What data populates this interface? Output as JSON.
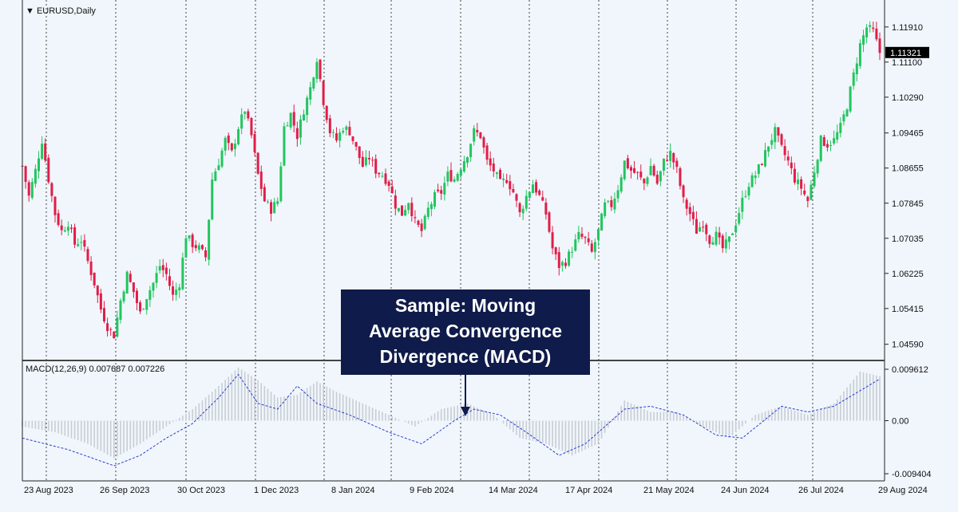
{
  "header": {
    "symbol": "EURUSD,Daily",
    "indicator": "MACD(12,26,9) 0.007687 0.007226"
  },
  "callout": {
    "line1": "Sample: Moving",
    "line2": "Average Convergence",
    "line3": "Divergence (MACD)"
  },
  "colors": {
    "background": "#f0f6fc",
    "bull": "#22c55e",
    "bear": "#e11d48",
    "macd_hist": "#c8cdd3",
    "signal": "#2b3bd0",
    "callout_bg": "#0f1b4a",
    "current_price_bg": "#000000"
  },
  "chart_data": [
    {
      "type": "candlestick",
      "title": "EURUSD,Daily",
      "y_ticks": [
        "1.11910",
        "1.11100",
        "1.10290",
        "1.09465",
        "1.08655",
        "1.07845",
        "1.07035",
        "1.06225",
        "1.05415",
        "1.04590"
      ],
      "ylim": [
        1.044,
        1.1198
      ],
      "current_price": "1.11321",
      "x_ticks": [
        "23 Aug 2023",
        "26 Sep 2023",
        "30 Oct 2023",
        "1 Dec 2023",
        "8 Jan 2024",
        "9 Feb 2024",
        "14 Mar 2024",
        "17 Apr 2024",
        "21 May 2024",
        "24 Jun 2024",
        "26 Jul 2024",
        "29 Aug 2024"
      ],
      "close_path": [
        [
          0,
          1.087
        ],
        [
          2,
          1.08
        ],
        [
          4,
          1.086
        ],
        [
          6,
          1.093
        ],
        [
          8,
          1.084
        ],
        [
          10,
          1.076
        ],
        [
          12,
          1.072
        ],
        [
          14,
          1.074
        ],
        [
          16,
          1.069
        ],
        [
          18,
          1.07
        ],
        [
          20,
          1.065
        ],
        [
          22,
          1.06
        ],
        [
          24,
          1.054
        ],
        [
          26,
          1.05
        ],
        [
          28,
          1.048
        ],
        [
          30,
          1.056
        ],
        [
          32,
          1.062
        ],
        [
          34,
          1.058
        ],
        [
          36,
          1.053
        ],
        [
          38,
          1.057
        ],
        [
          40,
          1.06
        ],
        [
          42,
          1.064
        ],
        [
          44,
          1.062
        ],
        [
          46,
          1.057
        ],
        [
          48,
          1.06
        ],
        [
          50,
          1.071
        ],
        [
          52,
          1.069
        ],
        [
          54,
          1.068
        ],
        [
          56,
          1.066
        ],
        [
          58,
          1.084
        ],
        [
          60,
          1.088
        ],
        [
          62,
          1.093
        ],
        [
          64,
          1.09
        ],
        [
          66,
          1.096
        ],
        [
          68,
          1.1
        ],
        [
          70,
          1.094
        ],
        [
          72,
          1.085
        ],
        [
          74,
          1.079
        ],
        [
          76,
          1.077
        ],
        [
          78,
          1.079
        ],
        [
          80,
          1.096
        ],
        [
          82,
          1.099
        ],
        [
          84,
          1.094
        ],
        [
          86,
          1.1
        ],
        [
          88,
          1.105
        ],
        [
          90,
          1.112
        ],
        [
          92,
          1.102
        ],
        [
          94,
          1.095
        ],
        [
          96,
          1.093
        ],
        [
          98,
          1.096
        ],
        [
          100,
          1.095
        ],
        [
          102,
          1.091
        ],
        [
          104,
          1.087
        ],
        [
          106,
          1.089
        ],
        [
          108,
          1.086
        ],
        [
          110,
          1.085
        ],
        [
          112,
          1.083
        ],
        [
          114,
          1.078
        ],
        [
          116,
          1.076
        ],
        [
          118,
          1.079
        ],
        [
          120,
          1.074
        ],
        [
          122,
          1.072
        ],
        [
          124,
          1.077
        ],
        [
          126,
          1.08
        ],
        [
          128,
          1.081
        ],
        [
          130,
          1.085
        ],
        [
          132,
          1.084
        ],
        [
          134,
          1.087
        ],
        [
          136,
          1.09
        ],
        [
          138,
          1.095
        ],
        [
          140,
          1.094
        ],
        [
          142,
          1.088
        ],
        [
          144,
          1.086
        ],
        [
          146,
          1.083
        ],
        [
          148,
          1.084
        ],
        [
          150,
          1.081
        ],
        [
          152,
          1.076
        ],
        [
          154,
          1.08
        ],
        [
          156,
          1.083
        ],
        [
          158,
          1.08
        ],
        [
          160,
          1.076
        ],
        [
          162,
          1.068
        ],
        [
          164,
          1.064
        ],
        [
          166,
          1.065
        ],
        [
          168,
          1.068
        ],
        [
          170,
          1.071
        ],
        [
          172,
          1.07
        ],
        [
          174,
          1.067
        ],
        [
          176,
          1.072
        ],
        [
          178,
          1.078
        ],
        [
          180,
          1.078
        ],
        [
          182,
          1.082
        ],
        [
          184,
          1.088
        ],
        [
          186,
          1.086
        ],
        [
          188,
          1.085
        ],
        [
          190,
          1.083
        ],
        [
          192,
          1.087
        ],
        [
          194,
          1.083
        ],
        [
          196,
          1.088
        ],
        [
          198,
          1.09
        ],
        [
          200,
          1.086
        ],
        [
          202,
          1.079
        ],
        [
          204,
          1.076
        ],
        [
          206,
          1.072
        ],
        [
          208,
          1.074
        ],
        [
          210,
          1.07
        ],
        [
          212,
          1.071
        ],
        [
          214,
          1.068
        ],
        [
          216,
          1.07
        ],
        [
          218,
          1.074
        ],
        [
          220,
          1.079
        ],
        [
          222,
          1.083
        ],
        [
          224,
          1.085
        ],
        [
          226,
          1.088
        ],
        [
          228,
          1.092
        ],
        [
          230,
          1.095
        ],
        [
          232,
          1.091
        ],
        [
          234,
          1.088
        ],
        [
          236,
          1.084
        ],
        [
          238,
          1.082
        ],
        [
          240,
          1.079
        ],
        [
          242,
          1.086
        ],
        [
          244,
          1.093
        ],
        [
          246,
          1.092
        ],
        [
          248,
          1.093
        ],
        [
          250,
          1.096
        ],
        [
          252,
          1.101
        ],
        [
          254,
          1.108
        ],
        [
          256,
          1.115
        ],
        [
          258,
          1.119
        ],
        [
          260,
          1.118
        ],
        [
          262,
          1.1132
        ]
      ]
    },
    {
      "type": "histogram+line",
      "title": "MACD(12,26,9)",
      "y_ticks": [
        "0.009612",
        "0.00",
        "-0.009404"
      ],
      "ylim": [
        -0.01,
        0.01
      ],
      "macd_path": [
        [
          0,
          -0.001
        ],
        [
          10,
          -0.002
        ],
        [
          20,
          -0.004
        ],
        [
          28,
          -0.0065
        ],
        [
          36,
          -0.004
        ],
        [
          44,
          -0.001
        ],
        [
          52,
          0.002
        ],
        [
          60,
          0.006
        ],
        [
          66,
          0.0092
        ],
        [
          72,
          0.007
        ],
        [
          78,
          0.004
        ],
        [
          84,
          0.0045
        ],
        [
          90,
          0.0068
        ],
        [
          96,
          0.005
        ],
        [
          104,
          0.003
        ],
        [
          112,
          0.001
        ],
        [
          120,
          -0.001
        ],
        [
          128,
          0.002
        ],
        [
          136,
          0.003
        ],
        [
          144,
          0.001
        ],
        [
          152,
          -0.003
        ],
        [
          160,
          -0.004
        ],
        [
          168,
          -0.006
        ],
        [
          176,
          -0.004
        ],
        [
          184,
          0.0035
        ],
        [
          192,
          0.0015
        ],
        [
          200,
          0.0015
        ],
        [
          208,
          -0.001
        ],
        [
          216,
          -0.003
        ],
        [
          224,
          0.001
        ],
        [
          232,
          0.0025
        ],
        [
          240,
          0.001
        ],
        [
          248,
          0.003
        ],
        [
          256,
          0.0085
        ],
        [
          262,
          0.0077
        ]
      ],
      "signal_path": [
        [
          0,
          -0.003
        ],
        [
          14,
          -0.005
        ],
        [
          28,
          -0.0078
        ],
        [
          36,
          -0.006
        ],
        [
          44,
          -0.003
        ],
        [
          52,
          -0.0005
        ],
        [
          60,
          0.004
        ],
        [
          66,
          0.008
        ],
        [
          72,
          0.003
        ],
        [
          78,
          0.002
        ],
        [
          84,
          0.006
        ],
        [
          90,
          0.003
        ],
        [
          100,
          0.001
        ],
        [
          112,
          -0.002
        ],
        [
          122,
          -0.004
        ],
        [
          132,
          0.0
        ],
        [
          138,
          0.002
        ],
        [
          146,
          0.001
        ],
        [
          154,
          -0.002
        ],
        [
          164,
          -0.006
        ],
        [
          172,
          -0.004
        ],
        [
          184,
          0.002
        ],
        [
          192,
          0.0025
        ],
        [
          202,
          0.001
        ],
        [
          212,
          -0.0025
        ],
        [
          220,
          -0.003
        ],
        [
          232,
          0.0025
        ],
        [
          240,
          0.0015
        ],
        [
          248,
          0.0025
        ],
        [
          262,
          0.0072
        ]
      ]
    }
  ]
}
